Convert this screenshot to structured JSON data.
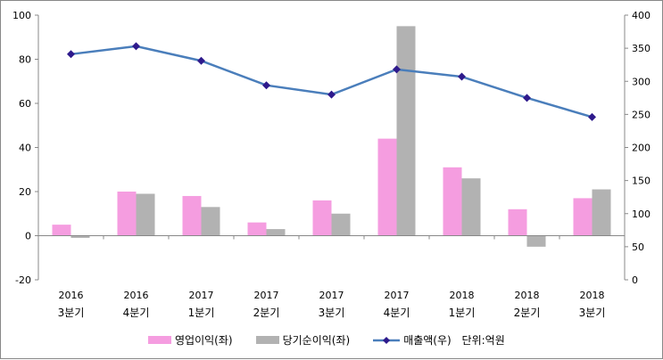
{
  "chart_data": {
    "type": "bar",
    "categories": [
      {
        "year": "2016",
        "quarter": "3분기"
      },
      {
        "year": "2016",
        "quarter": "4분기"
      },
      {
        "year": "2017",
        "quarter": "1분기"
      },
      {
        "year": "2017",
        "quarter": "2분기"
      },
      {
        "year": "2017",
        "quarter": "3분기"
      },
      {
        "year": "2017",
        "quarter": "4분기"
      },
      {
        "year": "2018",
        "quarter": "1분기"
      },
      {
        "year": "2018",
        "quarter": "2분기"
      },
      {
        "year": "2018",
        "quarter": "3분기"
      }
    ],
    "series": [
      {
        "name": "영업이익(좌)",
        "type": "bar",
        "axis": "left",
        "color": "#f59de0",
        "values": [
          5,
          20,
          18,
          6,
          16,
          44,
          31,
          12,
          17
        ]
      },
      {
        "name": "당기순이익(좌)",
        "type": "bar",
        "axis": "left",
        "color": "#b2b2b2",
        "values": [
          -1,
          19,
          13,
          3,
          10,
          95,
          26,
          -5,
          21
        ]
      },
      {
        "name": "매출액(우)",
        "type": "line",
        "axis": "right",
        "color": "#4a7ebb",
        "marker_color": "#2e1a8c",
        "values": [
          341,
          353,
          331,
          294,
          280,
          318,
          307,
          275,
          246
        ]
      }
    ],
    "unit_label": "단위:억원",
    "ylim_left": [
      -20,
      100
    ],
    "yticks_left": [
      "-20",
      "0",
      "20",
      "40",
      "60",
      "80",
      "100"
    ],
    "ylim_right": [
      0,
      400
    ],
    "yticks_right": [
      "0",
      "50",
      "100",
      "150",
      "200",
      "250",
      "300",
      "350",
      "400"
    ],
    "legend_position": "bottom",
    "grid": false
  }
}
